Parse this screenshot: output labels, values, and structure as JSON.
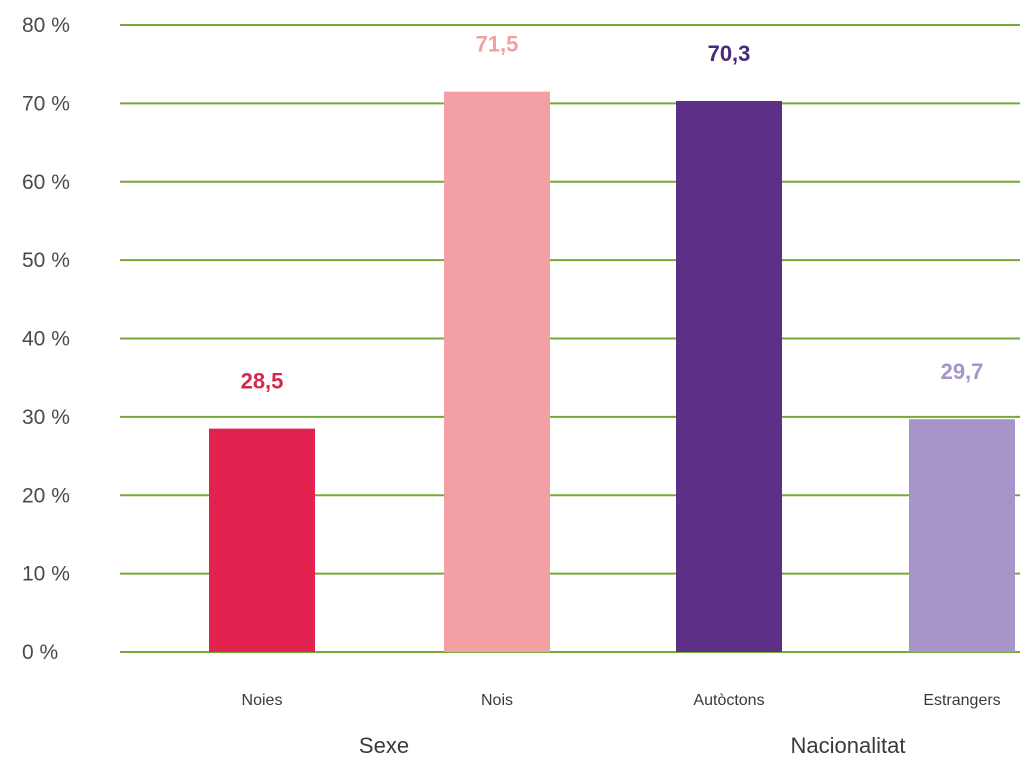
{
  "chart_data": {
    "type": "bar",
    "title": "",
    "xlabel": "",
    "ylabel": "",
    "categories": [
      "Noies",
      "Nois",
      "Autòctons",
      "Estrangers"
    ],
    "values": [
      28.5,
      71.5,
      70.3,
      29.7
    ],
    "value_labels": [
      "28,5",
      "71,5",
      "70,3",
      "29,7"
    ],
    "bar_colors": [
      "#e4224f",
      "#f2a0a4",
      "#5e2f86",
      "#a795c9"
    ],
    "label_colors": [
      "#d8254f",
      "#f2a0a4",
      "#4a2a78",
      "#a795c9"
    ],
    "groups": [
      {
        "label": "Sexe",
        "categories": [
          "Noies",
          "Nois"
        ]
      },
      {
        "label": "Nacionalitat",
        "categories": [
          "Autòctons",
          "Estrangers"
        ]
      }
    ],
    "ylim": [
      0,
      80
    ],
    "yticks": [
      0,
      10,
      20,
      30,
      40,
      50,
      60,
      70,
      80
    ],
    "ytick_labels": [
      "0 %",
      "10 %",
      "20 %",
      "30 %",
      "40 %",
      "50 %",
      "60 %",
      "70 %",
      "80 %"
    ],
    "grid": true,
    "grid_color": "#77a83a",
    "legend": "none"
  }
}
